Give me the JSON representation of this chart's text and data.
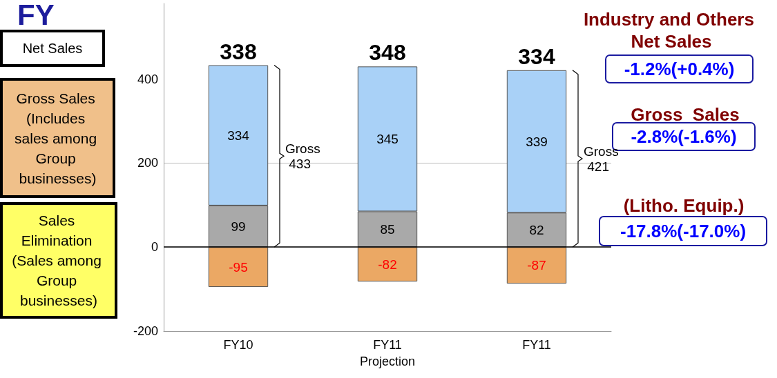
{
  "chart_data": {
    "type": "bar",
    "title": "FY",
    "stacked": true,
    "categories": [
      "FY10",
      "FY11 Projection",
      "FY11"
    ],
    "series": [
      {
        "color": "#a9a9a9",
        "values": [
          99,
          85,
          82
        ]
      },
      {
        "color": "#a9d1f7",
        "values": [
          334,
          345,
          339
        ]
      },
      {
        "color": "#eba864",
        "values": [
          -95,
          -82,
          -87
        ]
      }
    ],
    "data_labels": true,
    "totals": [
      "338",
      "348",
      "334"
    ],
    "ylim": [
      -200,
      580
    ],
    "yticks": [
      -200,
      0,
      200,
      400
    ],
    "grid": "y",
    "ref_lines": [
      {
        "axis": "y",
        "value": 0,
        "color": "#000000"
      }
    ],
    "annotations": [
      "Net Sales",
      "Gross Sales (Includes sales among Group businesses)",
      "Sales Elimination (Sales among Group businesses)",
      "Industry and Others Net Sales",
      "-1.2%(+0.4%)",
      "Gross  Sales",
      "-2.8%(-1.6%)",
      "(Litho. Equip.)",
      "-17.8%(-17.0%)",
      "Gross 433",
      "Gross 421"
    ]
  }
}
